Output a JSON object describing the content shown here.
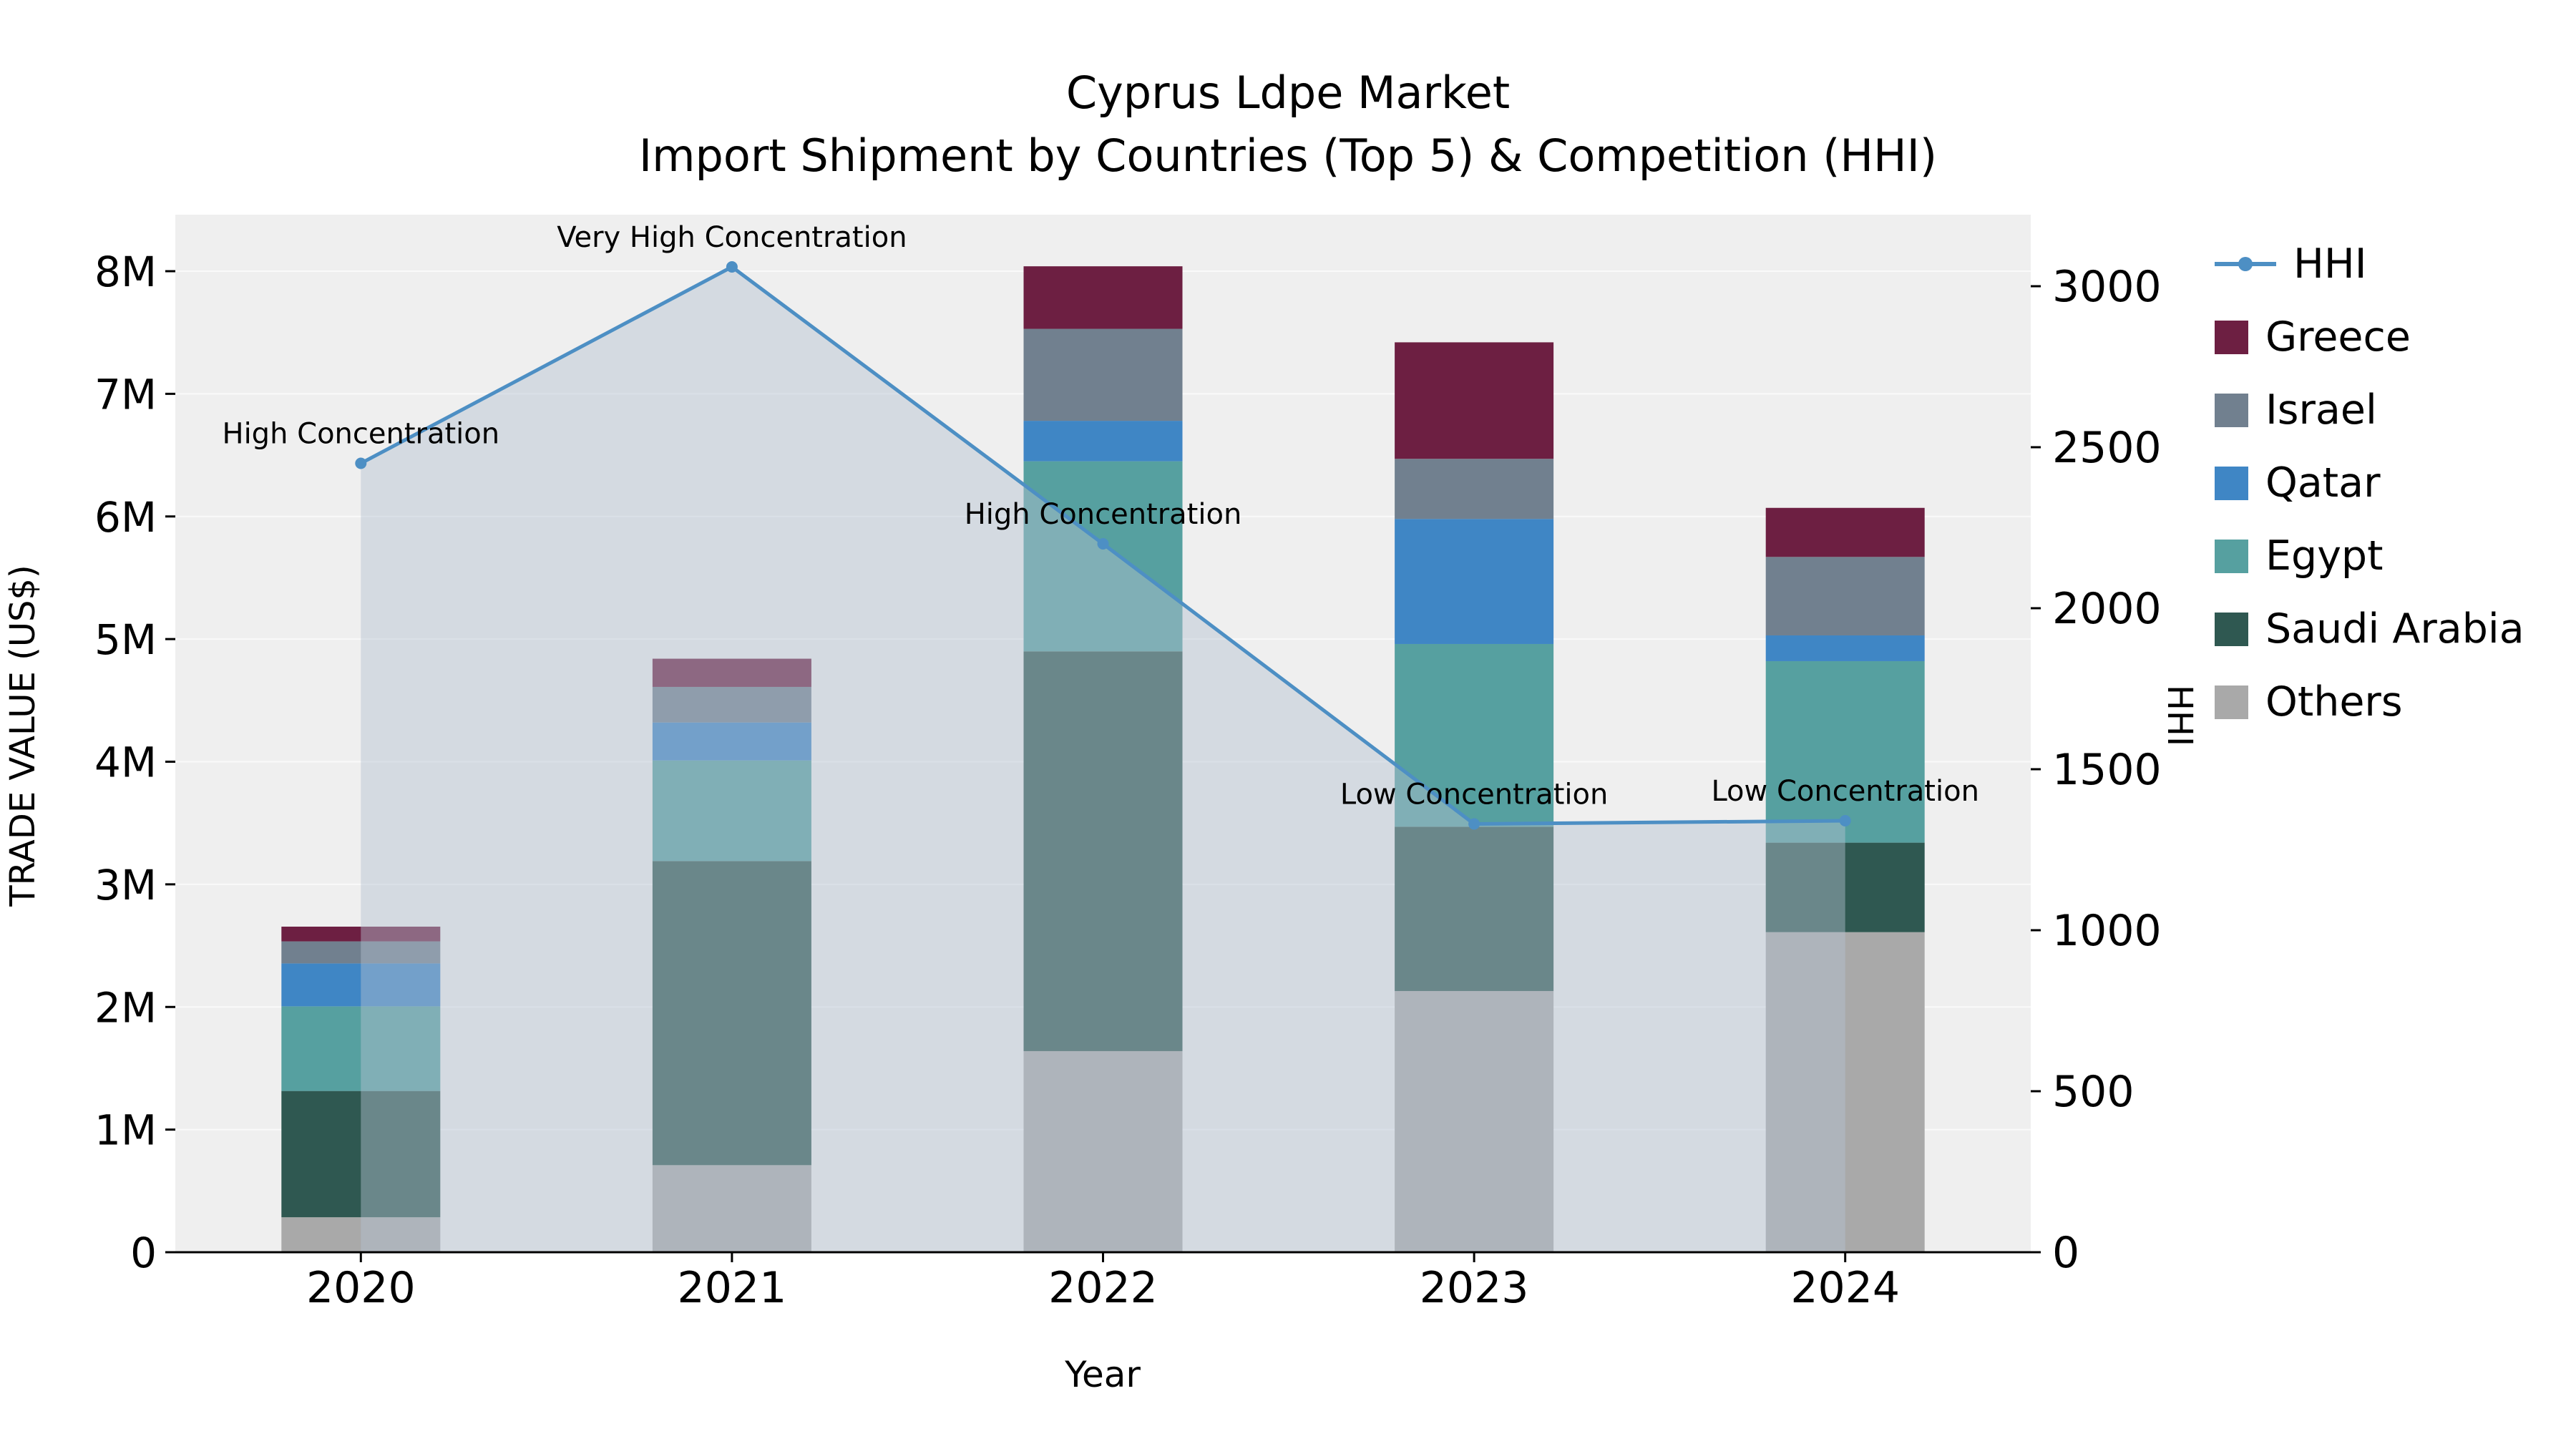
{
  "title": {
    "line1": "Cyprus Ldpe Market",
    "line2": "Import Shipment by Countries (Top 5) & Competition (HHI)"
  },
  "axes": {
    "x_title": "Year",
    "y_left_title": "TRADE VALUE (US$)",
    "y_right_title": "HHI"
  },
  "legend": {
    "items": [
      {
        "label": "HHI",
        "type": "line",
        "color": "#4d8fc4"
      },
      {
        "label": "Greece",
        "type": "swatch",
        "color": "#6d1f42"
      },
      {
        "label": "Israel",
        "type": "swatch",
        "color": "#71808f"
      },
      {
        "label": "Qatar",
        "type": "swatch",
        "color": "#3f86c5"
      },
      {
        "label": "Egypt",
        "type": "swatch",
        "color": "#56a0a0"
      },
      {
        "label": "Saudi Arabia",
        "type": "swatch",
        "color": "#2f5851"
      },
      {
        "label": "Others",
        "type": "swatch",
        "color": "#a9a9a9"
      }
    ]
  },
  "chart_data": {
    "type": "bar",
    "title": "Cyprus Ldpe Market",
    "subtitle": "Import Shipment by Countries (Top 5) & Competition (HHI)",
    "categories": [
      "2020",
      "2021",
      "2022",
      "2023",
      "2024"
    ],
    "x_label": "Year",
    "plot_bg": "#efefef",
    "grid": "horizontal",
    "legend_position": "right",
    "stack_order": "bottom-to-top",
    "series": [
      {
        "name": "Others",
        "color": "#a9a9a9",
        "values": [
          285000,
          710000,
          1640000,
          2130000,
          2610000
        ]
      },
      {
        "name": "Saudi Arabia",
        "color": "#2f5851",
        "values": [
          1030000,
          2480000,
          3260000,
          1340000,
          730000
        ]
      },
      {
        "name": "Egypt",
        "color": "#56a0a0",
        "values": [
          690000,
          820000,
          1550000,
          1490000,
          1480000
        ]
      },
      {
        "name": "Qatar",
        "color": "#3f86c5",
        "values": [
          350000,
          310000,
          330000,
          1020000,
          210000
        ]
      },
      {
        "name": "Israel",
        "color": "#71808f",
        "values": [
          180000,
          290000,
          750000,
          490000,
          640000
        ]
      },
      {
        "name": "Greece",
        "color": "#6d1f42",
        "values": [
          120000,
          230000,
          510000,
          950000,
          400000
        ]
      }
    ],
    "line_series": {
      "name": "HHI",
      "axis": "right",
      "color": "#4d8fc4",
      "area_color": "#b3c2d1",
      "area_opacity": 0.45,
      "values": [
        2450,
        3060,
        2200,
        1330,
        1340
      ],
      "annotations": [
        "High Concentration",
        "Very High Concentration",
        "High Concentration",
        "Low Concentration",
        "Low Concentration"
      ]
    },
    "y_left": {
      "label": "TRADE VALUE (US$)",
      "min": 0,
      "max_tick": 8000000,
      "tick_step": 1000000,
      "tick_labels": [
        "0",
        "1M",
        "2M",
        "3M",
        "4M",
        "5M",
        "6M",
        "7M",
        "8M"
      ]
    },
    "y_right": {
      "label": "HHI",
      "min": 0,
      "max_tick": 3000,
      "tick_step": 500,
      "tick_labels": [
        "0",
        "500",
        "1000",
        "1500",
        "2000",
        "2500",
        "3000"
      ]
    }
  }
}
